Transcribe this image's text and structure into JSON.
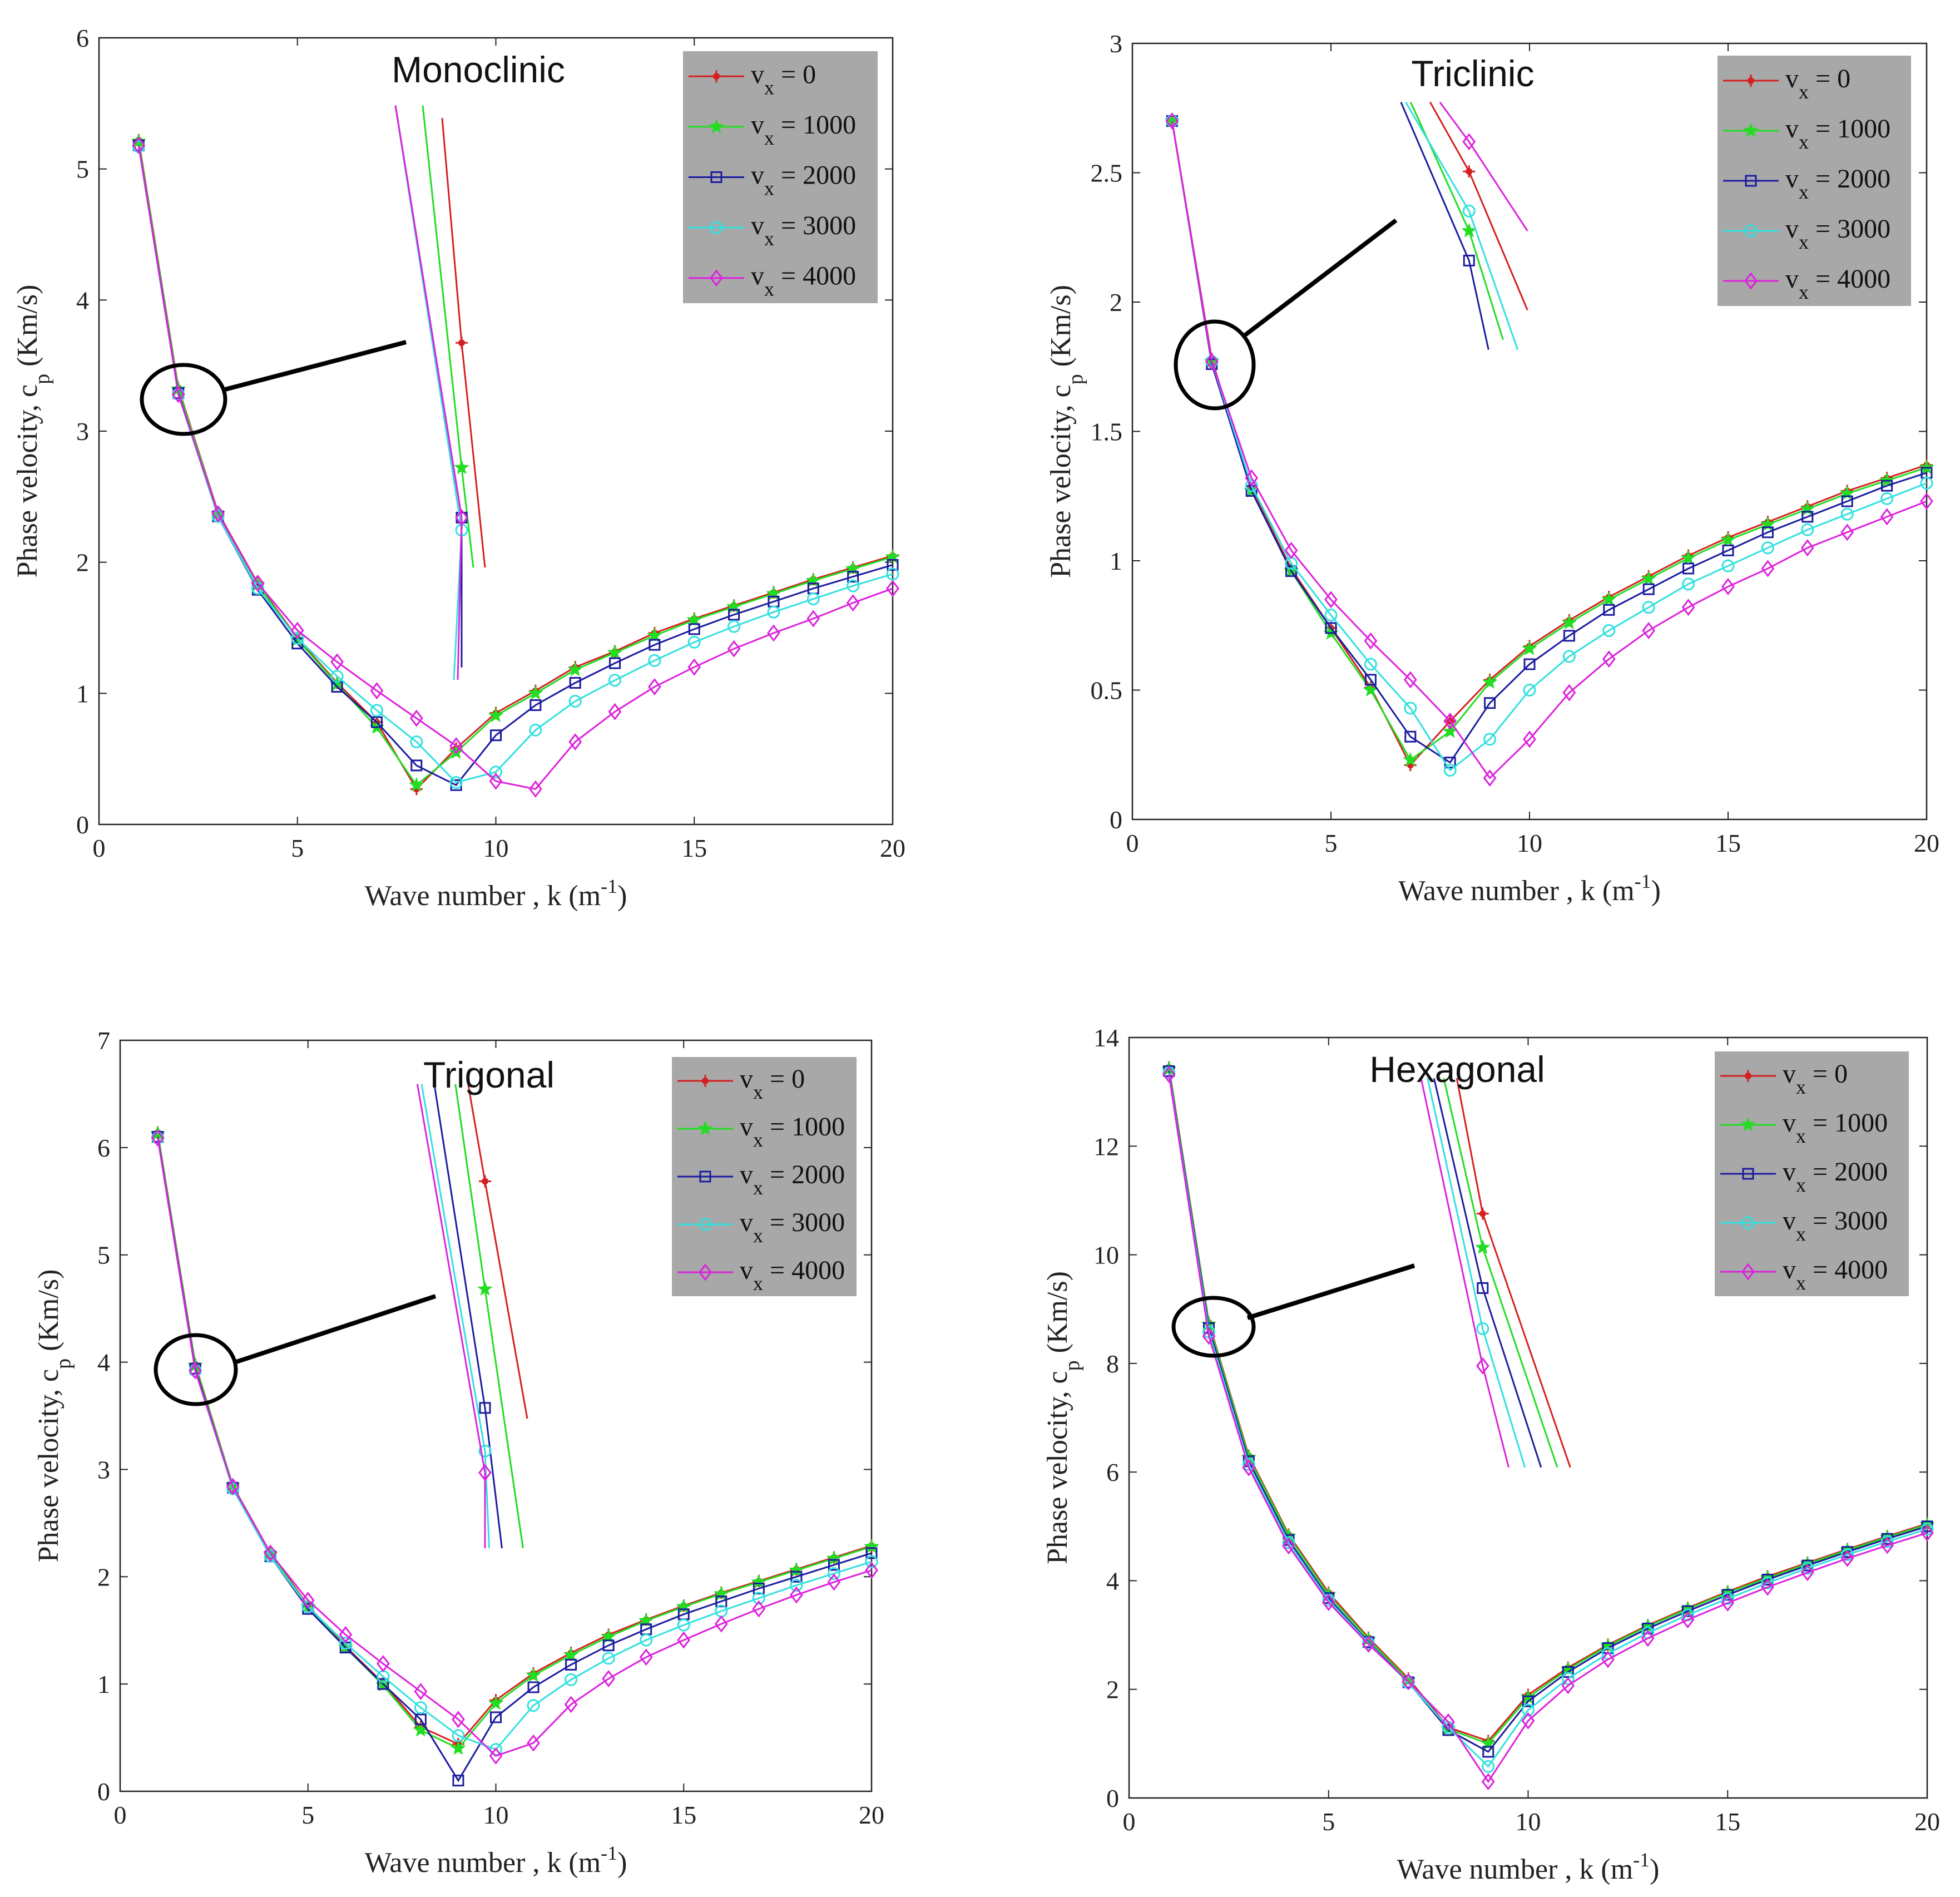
{
  "colors": {
    "vx0": "#d42020",
    "vx1000": "#22dd22",
    "vx2000": "#1c1ca0",
    "vx3000": "#33e0e0",
    "vx4000": "#dd22dd",
    "legend_bg": "#a8a8a8",
    "axis": "#222222"
  },
  "chart_data": [
    {
      "type": "line",
      "title": "Monoclinic",
      "xlabel": "Wave number , k (m",
      "xlabel_sup": "-1",
      "xlabel_end": ")",
      "ylabel": "Phase velocity, c",
      "ylabel_sub": "p",
      "ylabel_end": " (Km/s)",
      "xlim": [
        0,
        20
      ],
      "ylim": [
        0,
        6
      ],
      "xticks": [
        0,
        5,
        10,
        15,
        20
      ],
      "yticks": [
        0,
        1,
        2,
        3,
        4,
        5,
        6
      ],
      "x": [
        1,
        2,
        3,
        4,
        5,
        6,
        7,
        8,
        9,
        10,
        11,
        12,
        13,
        14,
        15,
        16,
        17,
        18,
        19,
        20
      ],
      "series": [
        {
          "name": "v",
          "sub": "x",
          "value": " = 0",
          "marker": "asterisk",
          "values": [
            5.22,
            3.33,
            2.38,
            1.84,
            1.42,
            1.08,
            0.78,
            0.27,
            0.58,
            0.85,
            1.02,
            1.2,
            1.32,
            1.46,
            1.57,
            1.67,
            1.77,
            1.87,
            1.96,
            2.05
          ]
        },
        {
          "name": "v",
          "sub": "x",
          "value": " = 1000",
          "marker": "star",
          "values": [
            5.21,
            3.32,
            2.37,
            1.83,
            1.41,
            1.07,
            0.74,
            0.3,
            0.55,
            0.83,
            1.0,
            1.18,
            1.31,
            1.44,
            1.56,
            1.66,
            1.76,
            1.86,
            1.95,
            2.04
          ]
        },
        {
          "name": "v",
          "sub": "x",
          "value": " = 2000",
          "marker": "square",
          "values": [
            5.18,
            3.29,
            2.35,
            1.79,
            1.38,
            1.05,
            0.78,
            0.45,
            0.3,
            0.68,
            0.91,
            1.08,
            1.23,
            1.37,
            1.49,
            1.6,
            1.7,
            1.8,
            1.89,
            1.98
          ]
        },
        {
          "name": "v",
          "sub": "x",
          "value": " = 3000",
          "marker": "circle",
          "values": [
            5.17,
            3.28,
            2.35,
            1.8,
            1.42,
            1.13,
            0.87,
            0.63,
            0.32,
            0.4,
            0.72,
            0.94,
            1.1,
            1.25,
            1.39,
            1.51,
            1.62,
            1.72,
            1.82,
            1.91
          ]
        },
        {
          "name": "v",
          "sub": "x",
          "value": " = 4000",
          "marker": "diamond",
          "values": [
            5.18,
            3.28,
            2.37,
            1.84,
            1.48,
            1.24,
            1.02,
            0.81,
            0.6,
            0.33,
            0.27,
            0.63,
            0.86,
            1.05,
            1.2,
            1.34,
            1.46,
            1.57,
            1.69,
            1.8
          ]
        }
      ],
      "inset": {
        "xlim": [
          1.8,
          2.3
        ],
        "ylim": [
          3.15,
          3.6
        ],
        "series": [
          {
            "x": [
              1.95,
              2.0,
              2.06
            ],
            "y": [
              3.55,
              3.37,
              3.19
            ]
          },
          {
            "x": [
              1.9,
              2.0,
              2.03
            ],
            "y": [
              3.56,
              3.27,
              3.19
            ]
          },
          {
            "x": [
              1.83,
              2.0,
              2.0
            ],
            "y": [
              3.56,
              3.23,
              3.11
            ]
          },
          {
            "x": [
              1.83,
              2.0,
              1.98
            ],
            "y": [
              3.56,
              3.22,
              3.1
            ]
          },
          {
            "x": [
              1.83,
              2.0,
              1.99
            ],
            "y": [
              3.56,
              3.23,
              3.1
            ]
          }
        ]
      }
    },
    {
      "type": "line",
      "title": "Triclinic",
      "xlabel": "Wave number , k (m",
      "xlabel_sup": "-1",
      "xlabel_end": ")",
      "ylabel": "Phase velocity, c",
      "ylabel_sub": "p",
      "ylabel_end": " (Km/s)",
      "xlim": [
        0,
        20
      ],
      "ylim": [
        0,
        3
      ],
      "xticks": [
        0,
        5,
        10,
        15,
        20
      ],
      "yticks": [
        0,
        0.5,
        1,
        1.5,
        2,
        2.5,
        3
      ],
      "x": [
        1,
        2,
        3,
        4,
        5,
        6,
        7,
        8,
        9,
        10,
        11,
        12,
        13,
        14,
        15,
        16,
        17,
        18,
        19,
        20
      ],
      "series": [
        {
          "name": "v",
          "sub": "x",
          "value": " = 0",
          "marker": "asterisk",
          "values": [
            2.7,
            1.78,
            1.28,
            0.97,
            0.74,
            0.51,
            0.21,
            0.38,
            0.54,
            0.67,
            0.77,
            0.86,
            0.94,
            1.02,
            1.09,
            1.15,
            1.21,
            1.27,
            1.32,
            1.37
          ]
        },
        {
          "name": "v",
          "sub": "x",
          "value": " = 1000",
          "marker": "star",
          "values": [
            2.7,
            1.77,
            1.27,
            0.96,
            0.72,
            0.5,
            0.23,
            0.34,
            0.53,
            0.66,
            0.76,
            0.85,
            0.93,
            1.01,
            1.08,
            1.14,
            1.2,
            1.26,
            1.31,
            1.36
          ]
        },
        {
          "name": "v",
          "sub": "x",
          "value": " = 2000",
          "marker": "square",
          "values": [
            2.7,
            1.76,
            1.27,
            0.96,
            0.74,
            0.54,
            0.32,
            0.22,
            0.45,
            0.6,
            0.71,
            0.81,
            0.89,
            0.97,
            1.04,
            1.11,
            1.17,
            1.23,
            1.29,
            1.34
          ]
        },
        {
          "name": "v",
          "sub": "x",
          "value": " = 3000",
          "marker": "circle",
          "values": [
            2.7,
            1.77,
            1.29,
            0.99,
            0.79,
            0.6,
            0.43,
            0.19,
            0.31,
            0.5,
            0.63,
            0.73,
            0.82,
            0.91,
            0.98,
            1.05,
            1.12,
            1.18,
            1.24,
            1.3
          ]
        },
        {
          "name": "v",
          "sub": "x",
          "value": " = 4000",
          "marker": "diamond",
          "values": [
            2.7,
            1.77,
            1.32,
            1.04,
            0.85,
            0.69,
            0.54,
            0.38,
            0.16,
            0.31,
            0.49,
            0.62,
            0.73,
            0.82,
            0.9,
            0.97,
            1.05,
            1.11,
            1.17,
            1.23
          ]
        }
      ],
      "inset": {
        "xlim": [
          1.85,
          2.25
        ],
        "ylim": [
          1.55,
          1.95
        ],
        "series": [
          {
            "x": [
              1.92,
              2.0,
              2.12
            ],
            "y": [
              1.93,
              1.86,
              1.72
            ]
          },
          {
            "x": [
              1.88,
              2.0,
              2.07
            ],
            "y": [
              1.93,
              1.8,
              1.69
            ]
          },
          {
            "x": [
              1.86,
              2.0,
              2.04
            ],
            "y": [
              1.93,
              1.77,
              1.68
            ]
          },
          {
            "x": [
              1.87,
              2.0,
              2.1
            ],
            "y": [
              1.93,
              1.82,
              1.68
            ]
          },
          {
            "x": [
              1.94,
              2.0,
              2.12
            ],
            "y": [
              1.93,
              1.89,
              1.8
            ]
          }
        ]
      }
    },
    {
      "type": "line",
      "title": "Trigonal",
      "xlabel": "Wave number , k (m",
      "xlabel_sup": "-1",
      "xlabel_end": ")",
      "ylabel": "Phase velocity, c",
      "ylabel_sub": "p",
      "ylabel_end": " (Km/s)",
      "xlim": [
        0,
        20
      ],
      "ylim": [
        0,
        7
      ],
      "xticks": [
        0,
        5,
        10,
        15,
        20
      ],
      "yticks": [
        0,
        1,
        2,
        3,
        4,
        5,
        6,
        7
      ],
      "x": [
        1,
        2,
        3,
        4,
        5,
        6,
        7,
        8,
        9,
        10,
        11,
        12,
        13,
        14,
        15,
        16,
        17,
        18,
        19,
        20
      ],
      "series": [
        {
          "name": "v",
          "sub": "x",
          "value": " = 0",
          "marker": "asterisk",
          "values": [
            6.14,
            3.98,
            2.85,
            2.22,
            1.73,
            1.35,
            1.01,
            0.6,
            0.44,
            0.85,
            1.1,
            1.29,
            1.46,
            1.6,
            1.73,
            1.85,
            1.96,
            2.07,
            2.18,
            2.29
          ]
        },
        {
          "name": "v",
          "sub": "x",
          "value": " = 1000",
          "marker": "star",
          "values": [
            6.13,
            3.97,
            2.85,
            2.21,
            1.72,
            1.34,
            0.99,
            0.57,
            0.4,
            0.82,
            1.08,
            1.27,
            1.44,
            1.59,
            1.72,
            1.84,
            1.95,
            2.06,
            2.17,
            2.28
          ]
        },
        {
          "name": "v",
          "sub": "x",
          "value": " = 2000",
          "marker": "square",
          "values": [
            6.1,
            3.94,
            2.83,
            2.19,
            1.7,
            1.34,
            1.0,
            0.67,
            0.1,
            0.69,
            0.97,
            1.18,
            1.36,
            1.51,
            1.65,
            1.77,
            1.89,
            2.0,
            2.11,
            2.22
          ]
        },
        {
          "name": "v",
          "sub": "x",
          "value": " = 3000",
          "marker": "circle",
          "values": [
            6.09,
            3.92,
            2.82,
            2.19,
            1.72,
            1.38,
            1.07,
            0.78,
            0.52,
            0.39,
            0.8,
            1.04,
            1.24,
            1.41,
            1.55,
            1.68,
            1.8,
            1.92,
            2.03,
            2.14
          ]
        },
        {
          "name": "v",
          "sub": "x",
          "value": " = 4000",
          "marker": "diamond",
          "values": [
            6.09,
            3.92,
            2.84,
            2.22,
            1.78,
            1.46,
            1.19,
            0.93,
            0.67,
            0.33,
            0.45,
            0.81,
            1.05,
            1.25,
            1.41,
            1.56,
            1.7,
            1.83,
            1.95,
            2.06
          ]
        }
      ],
      "inset": {
        "xlim": [
          1.8,
          2.3
        ],
        "ylim": [
          3.75,
          4.25
        ],
        "series": [
          {
            "x": [
              1.96,
              2.0,
              2.1
            ],
            "y": [
              4.23,
              4.14,
              3.92
            ]
          },
          {
            "x": [
              1.93,
              2.0,
              2.09
            ],
            "y": [
              4.23,
              4.04,
              3.8
            ]
          },
          {
            "x": [
              1.88,
              2.0,
              2.04
            ],
            "y": [
              4.23,
              3.93,
              3.8
            ]
          },
          {
            "x": [
              1.85,
              2.0,
              2.01
            ],
            "y": [
              4.23,
              3.89,
              3.8
            ]
          },
          {
            "x": [
              1.84,
              2.0,
              2.0
            ],
            "y": [
              4.23,
              3.87,
              3.8
            ]
          }
        ]
      }
    },
    {
      "type": "line",
      "title": "Hexagonal",
      "xlabel": "Wave number , k (m",
      "xlabel_sup": "-1",
      "xlabel_end": ")",
      "ylabel": "Phase velocity, c",
      "ylabel_sub": "p",
      "ylabel_end": " (Km/s)",
      "xlim": [
        0,
        20
      ],
      "ylim": [
        0,
        14
      ],
      "xticks": [
        0,
        5,
        10,
        15,
        20
      ],
      "yticks": [
        0,
        2,
        4,
        6,
        8,
        10,
        12,
        14
      ],
      "x": [
        1,
        2,
        3,
        4,
        5,
        6,
        7,
        8,
        9,
        10,
        11,
        12,
        13,
        14,
        15,
        16,
        17,
        18,
        19,
        20
      ],
      "series": [
        {
          "name": "v",
          "sub": "x",
          "value": " = 0",
          "marker": "asterisk",
          "values": [
            13.45,
            8.75,
            6.3,
            4.85,
            3.78,
            2.95,
            2.2,
            1.3,
            1.05,
            1.9,
            2.4,
            2.82,
            3.18,
            3.5,
            3.8,
            4.08,
            4.33,
            4.58,
            4.82,
            5.05
          ]
        },
        {
          "name": "v",
          "sub": "x",
          "value": " = 1000",
          "marker": "star",
          "values": [
            13.42,
            8.72,
            6.27,
            4.82,
            3.74,
            2.92,
            2.17,
            1.27,
            1.0,
            1.85,
            2.37,
            2.8,
            3.16,
            3.48,
            3.78,
            4.05,
            4.31,
            4.56,
            4.8,
            5.03
          ]
        },
        {
          "name": "v",
          "sub": "x",
          "value": " = 2000",
          "marker": "square",
          "values": [
            13.38,
            8.65,
            6.2,
            4.75,
            3.68,
            2.87,
            2.13,
            1.25,
            0.85,
            1.78,
            2.32,
            2.76,
            3.12,
            3.44,
            3.74,
            4.02,
            4.28,
            4.53,
            4.77,
            5.0
          ]
        },
        {
          "name": "v",
          "sub": "x",
          "value": " = 3000",
          "marker": "circle",
          "values": [
            13.35,
            8.58,
            6.14,
            4.7,
            3.64,
            2.85,
            2.12,
            1.3,
            0.58,
            1.62,
            2.2,
            2.66,
            3.04,
            3.37,
            3.67,
            3.96,
            4.23,
            4.48,
            4.72,
            4.95
          ]
        },
        {
          "name": "v",
          "sub": "x",
          "value": " = 4000",
          "marker": "diamond",
          "values": [
            13.32,
            8.5,
            6.08,
            4.64,
            3.6,
            2.83,
            2.14,
            1.4,
            0.3,
            1.42,
            2.07,
            2.55,
            2.94,
            3.28,
            3.59,
            3.88,
            4.15,
            4.41,
            4.65,
            4.88
          ]
        }
      ],
      "inset": {
        "xlim": [
          1.75,
          2.35
        ],
        "ylim": [
          8.3,
          9.5
        ],
        "series": [
          {
            "x": [
              1.92,
              2.0,
              2.27
            ],
            "y": [
              9.47,
              9.07,
              8.32
            ]
          },
          {
            "x": [
              1.88,
              2.0,
              2.23
            ],
            "y": [
              9.47,
              8.97,
              8.32
            ]
          },
          {
            "x": [
              1.85,
              2.0,
              2.18
            ],
            "y": [
              9.47,
              8.85,
              8.32
            ]
          },
          {
            "x": [
              1.83,
              2.0,
              2.13
            ],
            "y": [
              9.47,
              8.73,
              8.32
            ]
          },
          {
            "x": [
              1.81,
              2.0,
              2.08
            ],
            "y": [
              9.47,
              8.62,
              8.32
            ]
          }
        ]
      }
    }
  ]
}
